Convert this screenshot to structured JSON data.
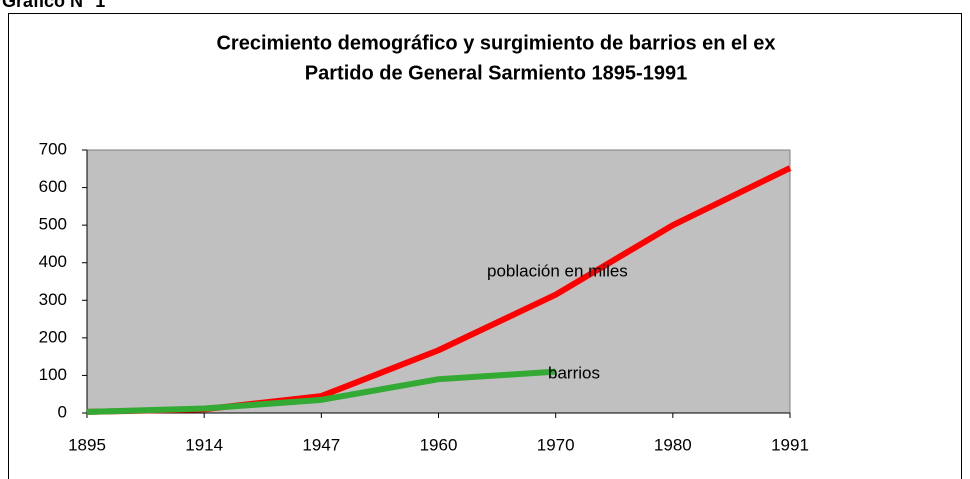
{
  "heading": "Gráfico N° 1",
  "chart_data": {
    "type": "line",
    "title": [
      "Crecimiento demográfico y surgimiento de barrios en el ex",
      "Partido de General Sarmiento 1895-1991"
    ],
    "categories": [
      "1895",
      "1914",
      "1947",
      "1960",
      "1970",
      "1980",
      "1991"
    ],
    "series": [
      {
        "name": "población en miles",
        "color": "#ff0000",
        "values": [
          3,
          10,
          45,
          167,
          315,
          500,
          652
        ]
      },
      {
        "name": "barrios",
        "color": "#33aa33",
        "values": [
          3,
          12,
          35,
          90,
          110,
          null,
          null
        ]
      }
    ],
    "ylim": [
      0,
      700
    ],
    "yticks": [
      0,
      100,
      200,
      300,
      400,
      500,
      600,
      700
    ],
    "plot_background": "#c0c0c0"
  }
}
